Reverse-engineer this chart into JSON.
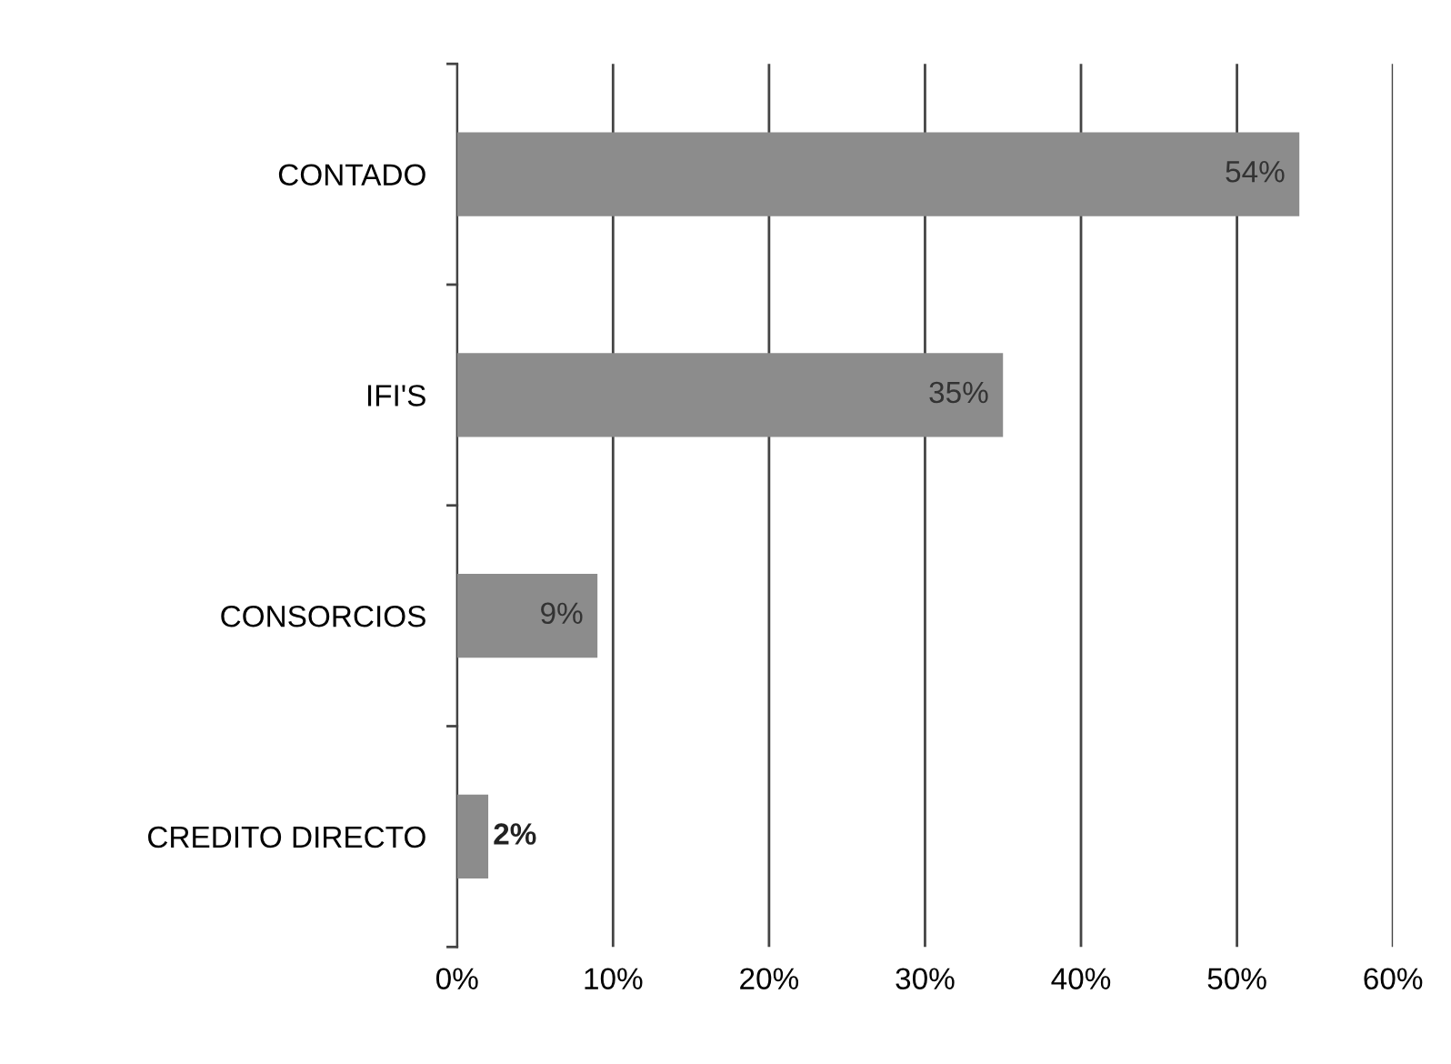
{
  "chart_data": {
    "type": "bar",
    "orientation": "horizontal",
    "categories": [
      "CONTADO",
      "IFI'S",
      "CONSORCIOS",
      "CREDITO DIRECTO"
    ],
    "values": [
      54,
      35,
      9,
      2
    ],
    "value_labels": [
      "54%",
      "35%",
      "9%",
      "2%"
    ],
    "color": "#8c8c8c",
    "xlim": [
      0,
      60
    ],
    "xticks": [
      {
        "value": 0,
        "label": "0%"
      },
      {
        "value": 10,
        "label": "10%"
      },
      {
        "value": 20,
        "label": "20%"
      },
      {
        "value": 30,
        "label": "30%"
      },
      {
        "value": 40,
        "label": "40%"
      },
      {
        "value": 50,
        "label": "50%"
      },
      {
        "value": 60,
        "label": "60%"
      }
    ],
    "grid": "x",
    "legend": false
  }
}
